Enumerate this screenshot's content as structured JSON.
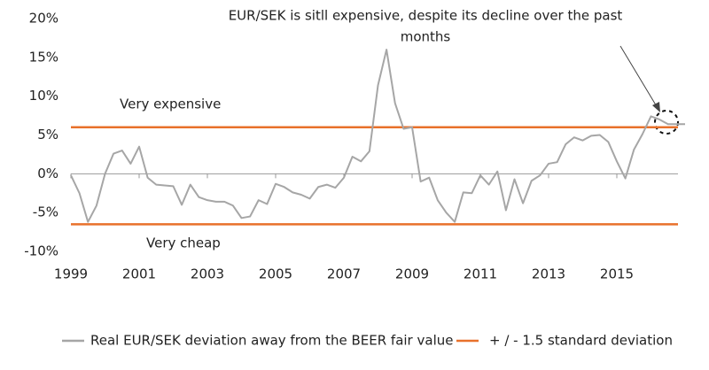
{
  "chart_data": {
    "type": "line",
    "annotation": [
      "EUR/SEK is sitll expensive,  despite its decline over the past",
      "months"
    ],
    "zone_labels": [
      "Very expensive",
      "Very cheap"
    ],
    "x": [
      1999,
      1999.25,
      1999.5,
      1999.75,
      2000,
      2000.25,
      2000.5,
      2000.75,
      2001,
      2001.25,
      2001.5,
      2001.75,
      2002,
      2002.25,
      2002.5,
      2002.75,
      2003,
      2003.25,
      2003.5,
      2003.75,
      2004,
      2004.25,
      2004.5,
      2004.75,
      2005,
      2005.25,
      2005.5,
      2005.75,
      2006,
      2006.25,
      2006.5,
      2006.75,
      2007,
      2007.25,
      2007.5,
      2007.75,
      2008,
      2008.25,
      2008.5,
      2008.75,
      2009,
      2009.25,
      2009.5,
      2009.75,
      2010,
      2010.25,
      2010.5,
      2010.75,
      2011,
      2011.25,
      2011.5,
      2011.75,
      2012,
      2012.25,
      2012.5,
      2012.75,
      2013,
      2013.25,
      2013.5,
      2013.75,
      2014,
      2014.25,
      2014.5,
      2014.75,
      2015,
      2015.25,
      2015.5,
      2015.75,
      2016,
      2016.25,
      2016.5,
      2016.75,
      2017
    ],
    "series": [
      {
        "name": "Real EUR/SEK deviation away from the BEER fair value",
        "color": "#a6a6a6",
        "values": [
          -0.2,
          -2.5,
          -6.2,
          -4.1,
          0,
          2.6,
          3.0,
          1.3,
          3.5,
          -0.5,
          -1.4,
          -1.5,
          -1.6,
          -4.0,
          -1.4,
          -3.0,
          -3.4,
          -3.6,
          -3.6,
          -4.1,
          -5.7,
          -5.5,
          -3.4,
          -3.9,
          -1.3,
          -1.7,
          -2.4,
          -2.7,
          -3.2,
          -1.7,
          -1.4,
          -1.8,
          -0.5,
          2.2,
          1.6,
          2.9,
          11.4,
          16.0,
          9.1,
          5.8,
          6.0,
          -1.0,
          -0.5,
          -3.4,
          -5.0,
          -6.2,
          -2.4,
          -2.5,
          -0.2,
          -1.4,
          0.3,
          -4.7,
          -0.7,
          -3.8,
          -0.9,
          -0.2,
          1.3,
          1.5,
          3.8,
          4.7,
          4.3,
          4.9,
          5.0,
          4.1,
          1.6,
          -0.6,
          3.1,
          5.1,
          7.4,
          7.0,
          6.4,
          6.4,
          6.4
        ]
      }
    ],
    "bands": {
      "name": "+ / - 1.5 standard deviation",
      "color": "#e8712b",
      "values": [
        6.0,
        -6.5
      ]
    },
    "xlim": [
      1999,
      2017
    ],
    "xticks": [
      1999,
      2001,
      2003,
      2005,
      2007,
      2009,
      2011,
      2013,
      2015
    ],
    "ylim": [
      -10,
      20
    ],
    "yticks": [
      {
        "value": -10,
        "label": "-10%"
      },
      {
        "value": -5,
        "label": "-5%"
      },
      {
        "value": 0,
        "label": "0%"
      },
      {
        "value": 5,
        "label": "5%"
      },
      {
        "value": 10,
        "label": "10%"
      },
      {
        "value": 15,
        "label": "15%"
      },
      {
        "value": 20,
        "label": "20%"
      }
    ]
  }
}
